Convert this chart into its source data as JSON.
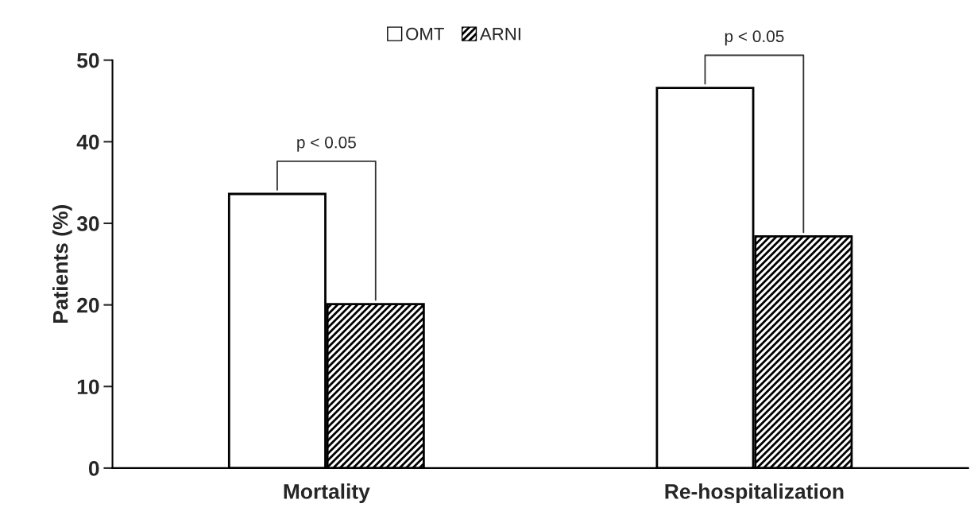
{
  "chart_data": {
    "type": "bar",
    "ylabel": "Patients (%)",
    "categories": [
      "Mortality",
      "Re-hospitalization"
    ],
    "series": [
      {
        "name": "OMT",
        "color": "#ffffff",
        "values": [
          33.6,
          46.6
        ]
      },
      {
        "name": "ARNI",
        "color": "#000000",
        "values": [
          20.1,
          28.4
        ]
      }
    ],
    "ylim": [
      0,
      50
    ],
    "yticks": [
      0,
      10,
      20,
      30,
      40,
      50
    ],
    "grid": false,
    "legend": "top",
    "annotations": [
      "p < 0.05",
      "p < 0.05"
    ]
  }
}
